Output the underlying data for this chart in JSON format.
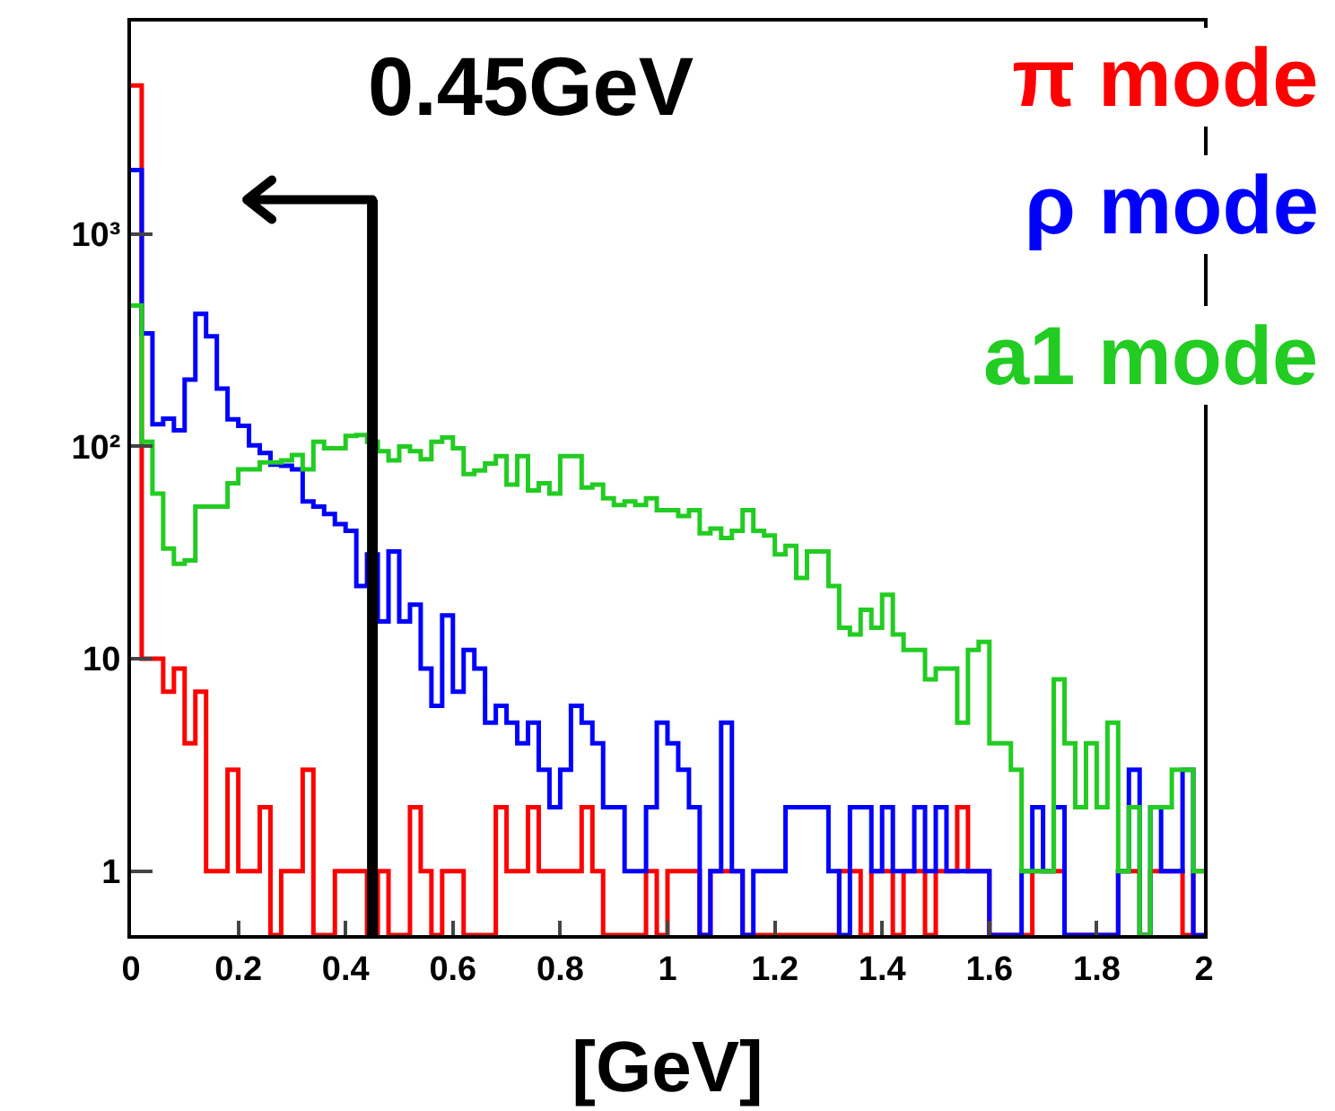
{
  "chart_data": {
    "type": "histogram",
    "xlabel": "[GeV]",
    "log": true,
    "legend": "top right",
    "bins": [
      0,
      0.02,
      0.04,
      0.06,
      0.08,
      0.1,
      0.12,
      0.14,
      0.16,
      0.18,
      0.2,
      0.22,
      0.24,
      0.26,
      0.28,
      0.3,
      0.32,
      0.34,
      0.36,
      0.38,
      0.4,
      0.42,
      0.44,
      0.46,
      0.48,
      0.5,
      0.52,
      0.54,
      0.56,
      0.58,
      0.6,
      0.62,
      0.64,
      0.66,
      0.68,
      0.7,
      0.72,
      0.74,
      0.76,
      0.78,
      0.8,
      0.82,
      0.84,
      0.86,
      0.88,
      0.9,
      0.92,
      0.94,
      0.96,
      0.98,
      1,
      1.02,
      1.04,
      1.06,
      1.08,
      1.1,
      1.12,
      1.14,
      1.16,
      1.18,
      1.2,
      1.22,
      1.24,
      1.26,
      1.28,
      1.3,
      1.32,
      1.34,
      1.36,
      1.38,
      1.4,
      1.42,
      1.44,
      1.46,
      1.48,
      1.5,
      1.52,
      1.54,
      1.56,
      1.58,
      1.6,
      1.62,
      1.64,
      1.66,
      1.68,
      1.7,
      1.72,
      1.74,
      1.76,
      1.78,
      1.8,
      1.82,
      1.84,
      1.86,
      1.88,
      1.9,
      1.92,
      1.94,
      1.96,
      1.98,
      2
    ],
    "series": [
      {
        "name": "π mode",
        "color": "#ff0000",
        "values": [
          5000,
          10,
          10,
          7,
          9,
          4,
          7,
          1,
          1,
          3,
          1,
          1,
          2,
          null,
          1,
          1,
          3,
          null,
          null,
          1,
          1,
          1,
          null,
          1,
          null,
          null,
          2,
          1,
          null,
          1,
          1,
          null,
          null,
          null,
          2,
          1,
          1,
          2,
          1,
          1,
          1,
          1,
          2,
          1,
          null,
          null,
          null,
          null,
          1,
          null,
          1,
          1,
          1,
          null,
          1,
          1,
          1,
          null,
          null,
          null,
          null,
          null,
          null,
          null,
          null,
          null,
          1,
          1,
          null,
          1,
          1,
          null,
          1,
          1,
          null,
          1,
          1,
          2,
          1,
          1,
          null,
          null,
          null,
          null,
          1,
          1,
          1,
          null,
          null,
          null,
          null,
          null,
          1,
          1,
          null,
          1,
          1,
          1,
          null,
          1
        ]
      },
      {
        "name": "ρ mode",
        "color": "#0000ff",
        "values": [
          2000,
          340,
          127,
          135,
          119,
          206,
          420,
          330,
          187,
          134,
          125,
          101,
          93,
          82,
          81,
          78,
          55,
          52,
          48,
          43,
          40,
          22,
          31,
          15,
          32,
          15,
          18,
          9,
          6,
          16,
          7,
          11,
          9,
          5,
          6,
          5,
          4,
          5,
          3,
          2,
          3,
          6,
          5,
          4,
          2,
          2,
          1,
          1,
          2,
          5,
          4,
          3,
          2,
          null,
          1,
          5,
          1,
          null,
          1,
          1,
          1,
          2,
          2,
          2,
          2,
          1,
          null,
          2,
          2,
          1,
          2,
          1,
          1,
          2,
          1,
          2,
          1,
          1,
          1,
          1,
          null,
          null,
          null,
          1,
          2,
          1,
          2,
          null,
          null,
          null,
          null,
          null,
          1,
          3,
          null,
          2,
          1,
          1,
          3,
          null
        ]
      },
      {
        "name": "a1 mode",
        "color": "#22cc22",
        "values": [
          460,
          105,
          60,
          33,
          28,
          29,
          52,
          52,
          52,
          67,
          78,
          78,
          84,
          84,
          86,
          91,
          78,
          105,
          98,
          98,
          112,
          113,
          105,
          95,
          86,
          100,
          95,
          87,
          105,
          110,
          98,
          74,
          77,
          83,
          90,
          66,
          90,
          62,
          67,
          60,
          90,
          90,
          64,
          66,
          57,
          53,
          55,
          53,
          57,
          50,
          50,
          47,
          50,
          39,
          41,
          37,
          40,
          50,
          40,
          38,
          31,
          34,
          24,
          32,
          32,
          22,
          14,
          13,
          17,
          14,
          20,
          13,
          11,
          11,
          8,
          9,
          9,
          5,
          11,
          12,
          4,
          4,
          3,
          1,
          1,
          1,
          8,
          4,
          2,
          4,
          2,
          5,
          1,
          2,
          null,
          2,
          2,
          3,
          3,
          1
        ]
      }
    ],
    "xlim": [
      0,
      2
    ],
    "ylim": [
      0.5,
      10000
    ],
    "xticks": [
      0,
      0.2,
      0.4,
      0.6,
      0.8,
      1,
      1.2,
      1.4,
      1.6,
      1.8,
      2
    ],
    "yticks": [
      1,
      10,
      {
        "value": 100,
        "label": "10²"
      },
      {
        "value": 1000,
        "label": "10³"
      }
    ],
    "ref_lines": [
      {
        "axis": "x",
        "value": 0.45,
        "label": "0.45GeV",
        "color": "#000000"
      }
    ]
  }
}
